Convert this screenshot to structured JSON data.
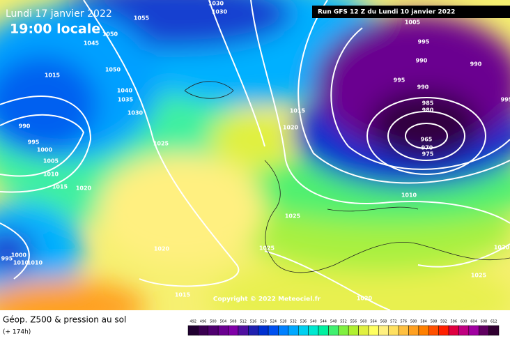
{
  "header": {
    "valid_date": "Lundi 17 janvier 2022",
    "valid_time": "19:00 locale",
    "run": "Run GFS 12 Z du Lundi 10 janvier 2022"
  },
  "copyright": "Copyright © 2022 Meteociel.fr",
  "footer": {
    "title": "Géop. Z500 & pression au sol",
    "lead": "(+ 174h)"
  },
  "isobar_labels": [
    1030,
    1030,
    1055,
    1050,
    1045,
    1050,
    1015,
    1040,
    1035,
    1030,
    1025,
    1015,
    1020,
    990,
    995,
    1000,
    1005,
    1010,
    1015,
    1020,
    1005,
    995,
    990,
    990,
    995,
    990,
    985,
    980,
    965,
    970,
    975,
    995,
    1010,
    1025,
    1025,
    1020,
    1000,
    995,
    1010,
    1010,
    1015,
    1020,
    1030,
    1025
  ],
  "colorbar": {
    "labels": [
      492,
      496,
      500,
      504,
      508,
      512,
      516,
      520,
      524,
      528,
      532,
      536,
      540,
      544,
      548,
      552,
      556,
      560,
      564,
      568,
      572,
      576,
      580,
      584,
      588,
      592,
      596,
      600,
      604,
      608,
      612
    ],
    "colors": [
      "#200030",
      "#3a0050",
      "#500070",
      "#6a0090",
      "#8000a8",
      "#5010a0",
      "#2020b0",
      "#0030d0",
      "#0050f0",
      "#0080ff",
      "#00a8ff",
      "#00d0f0",
      "#00e8d0",
      "#00f0a0",
      "#40f070",
      "#80f040",
      "#b0f030",
      "#e0f040",
      "#ffff60",
      "#fff080",
      "#ffe060",
      "#ffc040",
      "#ffa020",
      "#ff8000",
      "#ff5000",
      "#ff2000",
      "#e00040",
      "#c00080",
      "#a000a0",
      "#600060",
      "#300030"
    ]
  }
}
